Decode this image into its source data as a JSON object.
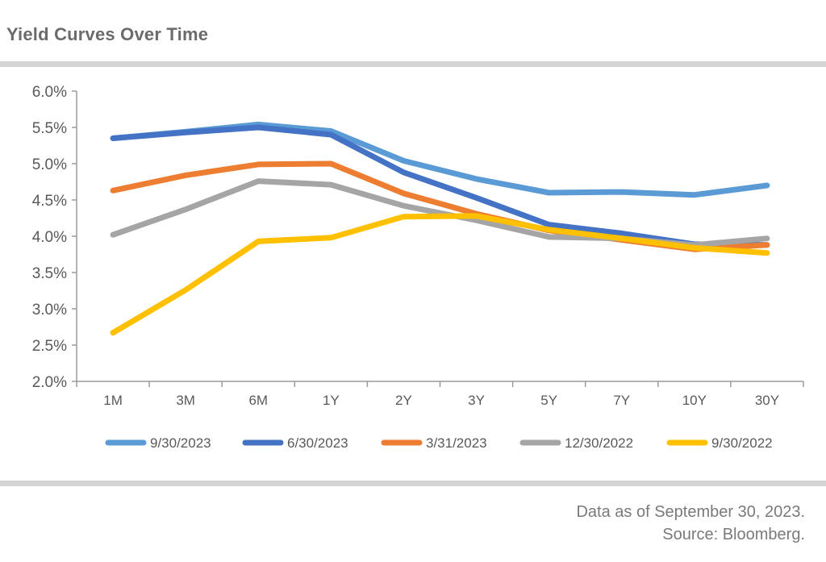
{
  "title": "Yield Curves Over Time",
  "footnote": {
    "line1": "Data as of September 30, 2023.",
    "line2": "Source: Bloomberg."
  },
  "chart_data": {
    "type": "line",
    "title": "Yield Curves Over Time",
    "xlabel": "",
    "ylabel": "",
    "categories": [
      "1M",
      "3M",
      "6M",
      "1Y",
      "2Y",
      "3Y",
      "5Y",
      "7Y",
      "10Y",
      "30Y"
    ],
    "ylim": [
      2.0,
      6.0
    ],
    "yticks": [
      2.0,
      2.5,
      3.0,
      3.5,
      4.0,
      4.5,
      5.0,
      5.5,
      6.0
    ],
    "ytick_labels": [
      "2.0%",
      "2.5%",
      "3.0%",
      "3.5%",
      "4.0%",
      "4.5%",
      "5.0%",
      "5.5%",
      "6.0%"
    ],
    "grid": false,
    "legend_position": "bottom",
    "series": [
      {
        "name": "9/30/2023",
        "color": "#5b9bd5",
        "values": [
          5.35,
          5.44,
          5.54,
          5.45,
          5.04,
          4.79,
          4.6,
          4.61,
          4.57,
          4.7
        ]
      },
      {
        "name": "6/30/2023",
        "color": "#4472c4",
        "values": [
          5.35,
          5.43,
          5.5,
          5.4,
          4.88,
          4.53,
          4.16,
          4.04,
          3.89,
          3.88
        ]
      },
      {
        "name": "3/31/2023",
        "color": "#ed7d31",
        "values": [
          4.63,
          4.84,
          4.99,
          5.0,
          4.59,
          4.31,
          4.08,
          3.95,
          3.82,
          3.88
        ]
      },
      {
        "name": "12/30/2022",
        "color": "#a5a5a5",
        "values": [
          4.02,
          4.37,
          4.76,
          4.71,
          4.42,
          4.22,
          3.99,
          3.97,
          3.88,
          3.97
        ]
      },
      {
        "name": "9/30/2022",
        "color": "#ffc000",
        "values": [
          2.67,
          3.26,
          3.93,
          3.98,
          4.27,
          4.28,
          4.09,
          3.97,
          3.84,
          3.77
        ]
      }
    ]
  }
}
